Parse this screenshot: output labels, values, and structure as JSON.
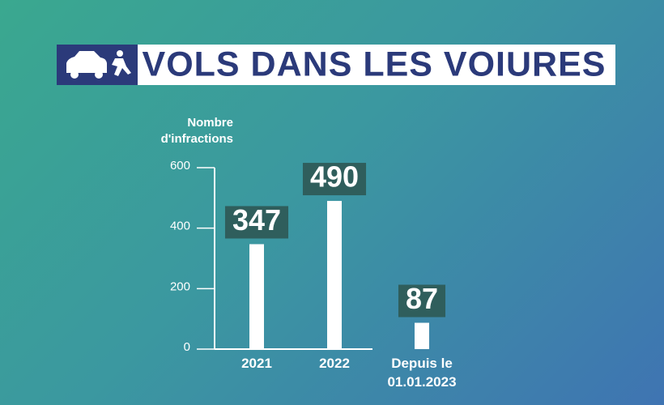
{
  "chart_data": {
    "type": "bar",
    "title": "VOLS DANS LES VOIURES",
    "ylabel": "Nombre d'infractions",
    "categories": [
      "2021",
      "2022",
      "Depuis le 01.01.2023"
    ],
    "values": [
      347,
      490,
      87
    ],
    "color": "#ffffff",
    "label_box_color": "#2f5e5c",
    "ylim": [
      0,
      600
    ],
    "yticks": [
      0,
      200,
      400,
      600
    ],
    "grid": false
  }
}
